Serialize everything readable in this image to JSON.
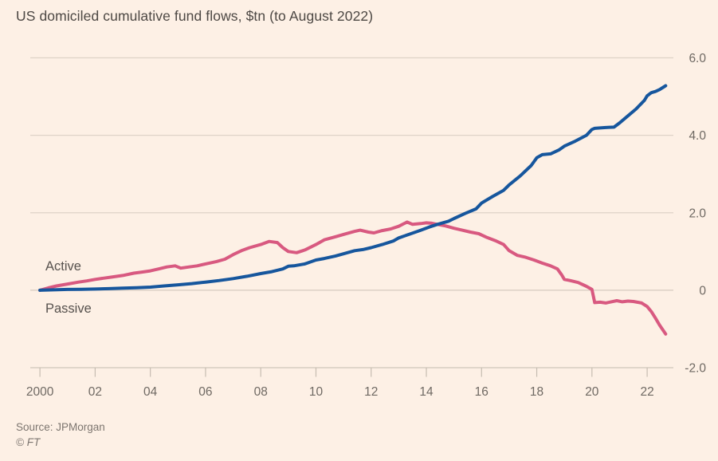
{
  "chart": {
    "title": "US domiciled cumulative fund flows, $tn (to August 2022)",
    "source": "Source: JPMorgan",
    "copyright": "© FT",
    "series_labels": {
      "active": "Active",
      "passive": "Passive"
    }
  },
  "chart_data": {
    "type": "line",
    "title": "US domiciled cumulative fund flows, $tn (to August 2022)",
    "xlabel": "",
    "ylabel": "$tn",
    "grid": "horizontal",
    "legend_position": "direct-labels-on-chart",
    "xlim": [
      1999.65,
      2022.95
    ],
    "ylim": [
      -2,
      6
    ],
    "x_ticks": [
      {
        "year": 2000,
        "label": "2000"
      },
      {
        "year": 2002,
        "label": "02"
      },
      {
        "year": 2004,
        "label": "04"
      },
      {
        "year": 2006,
        "label": "06"
      },
      {
        "year": 2008,
        "label": "08"
      },
      {
        "year": 2010,
        "label": "10"
      },
      {
        "year": 2012,
        "label": "12"
      },
      {
        "year": 2014,
        "label": "14"
      },
      {
        "year": 2016,
        "label": "16"
      },
      {
        "year": 2018,
        "label": "18"
      },
      {
        "year": 2020,
        "label": "20"
      },
      {
        "year": 2022,
        "label": "22"
      }
    ],
    "y_ticks": [
      {
        "value": 6,
        "label": "6.0"
      },
      {
        "value": 4,
        "label": "4.0"
      },
      {
        "value": 2,
        "label": "2.0"
      },
      {
        "value": 0,
        "label": "0"
      },
      {
        "value": -2,
        "label": "-2.0"
      }
    ],
    "colors": {
      "passive_line": "#16569d",
      "active_line": "#d85980",
      "background": "#fdf0e5",
      "grid": "#ded3c7",
      "zero_line": "#d5cabe",
      "axis": "#cfc5ba",
      "tick": "#c6bcb1",
      "text_primary": "#4d4844",
      "text_secondary": "#6f6963",
      "text_muted": "#7d7670"
    },
    "series": [
      {
        "name": "Active",
        "color_key": "active_line",
        "points": [
          [
            2000,
            0.0
          ],
          [
            2000.3,
            0.06
          ],
          [
            2000.6,
            0.11
          ],
          [
            2001,
            0.16
          ],
          [
            2001.4,
            0.21
          ],
          [
            2001.7,
            0.24
          ],
          [
            2002,
            0.28
          ],
          [
            2002.3,
            0.31
          ],
          [
            2002.6,
            0.34
          ],
          [
            2003,
            0.38
          ],
          [
            2003.4,
            0.44
          ],
          [
            2003.7,
            0.47
          ],
          [
            2004,
            0.5
          ],
          [
            2004.3,
            0.55
          ],
          [
            2004.6,
            0.6
          ],
          [
            2004.9,
            0.63
          ],
          [
            2005.1,
            0.57
          ],
          [
            2005.4,
            0.6
          ],
          [
            2005.7,
            0.63
          ],
          [
            2006,
            0.68
          ],
          [
            2006.4,
            0.74
          ],
          [
            2006.7,
            0.8
          ],
          [
            2007,
            0.92
          ],
          [
            2007.3,
            1.02
          ],
          [
            2007.6,
            1.1
          ],
          [
            2008,
            1.18
          ],
          [
            2008.3,
            1.26
          ],
          [
            2008.6,
            1.23
          ],
          [
            2008.8,
            1.1
          ],
          [
            2009,
            1.0
          ],
          [
            2009.3,
            0.97
          ],
          [
            2009.6,
            1.04
          ],
          [
            2010,
            1.18
          ],
          [
            2010.3,
            1.3
          ],
          [
            2010.7,
            1.38
          ],
          [
            2011,
            1.44
          ],
          [
            2011.4,
            1.52
          ],
          [
            2011.6,
            1.55
          ],
          [
            2011.9,
            1.5
          ],
          [
            2012.1,
            1.48
          ],
          [
            2012.4,
            1.54
          ],
          [
            2012.7,
            1.58
          ],
          [
            2013,
            1.65
          ],
          [
            2013.3,
            1.76
          ],
          [
            2013.5,
            1.7
          ],
          [
            2013.8,
            1.72
          ],
          [
            2014,
            1.74
          ],
          [
            2014.2,
            1.73
          ],
          [
            2014.4,
            1.7
          ],
          [
            2014.7,
            1.66
          ],
          [
            2015,
            1.6
          ],
          [
            2015.3,
            1.55
          ],
          [
            2015.6,
            1.5
          ],
          [
            2015.9,
            1.46
          ],
          [
            2016.2,
            1.36
          ],
          [
            2016.5,
            1.28
          ],
          [
            2016.8,
            1.18
          ],
          [
            2017,
            1.02
          ],
          [
            2017.3,
            0.9
          ],
          [
            2017.6,
            0.85
          ],
          [
            2017.9,
            0.78
          ],
          [
            2018.2,
            0.7
          ],
          [
            2018.5,
            0.63
          ],
          [
            2018.75,
            0.55
          ],
          [
            2018.9,
            0.4
          ],
          [
            2019,
            0.28
          ],
          [
            2019.2,
            0.25
          ],
          [
            2019.5,
            0.2
          ],
          [
            2019.8,
            0.1
          ],
          [
            2020,
            0.02
          ],
          [
            2020.1,
            -0.32
          ],
          [
            2020.3,
            -0.31
          ],
          [
            2020.5,
            -0.33
          ],
          [
            2020.7,
            -0.3
          ],
          [
            2020.9,
            -0.27
          ],
          [
            2021.1,
            -0.3
          ],
          [
            2021.3,
            -0.28
          ],
          [
            2021.5,
            -0.29
          ],
          [
            2021.8,
            -0.33
          ],
          [
            2022,
            -0.42
          ],
          [
            2022.15,
            -0.55
          ],
          [
            2022.3,
            -0.72
          ],
          [
            2022.45,
            -0.9
          ],
          [
            2022.67,
            -1.13
          ]
        ]
      },
      {
        "name": "Passive",
        "color_key": "passive_line",
        "points": [
          [
            2000,
            0.0
          ],
          [
            2000.5,
            0.01
          ],
          [
            2001,
            0.02
          ],
          [
            2001.5,
            0.025
          ],
          [
            2002,
            0.03
          ],
          [
            2002.5,
            0.04
          ],
          [
            2003,
            0.055
          ],
          [
            2003.5,
            0.065
          ],
          [
            2004,
            0.08
          ],
          [
            2004.5,
            0.11
          ],
          [
            2005,
            0.14
          ],
          [
            2005.5,
            0.17
          ],
          [
            2006,
            0.21
          ],
          [
            2006.5,
            0.25
          ],
          [
            2007,
            0.3
          ],
          [
            2007.5,
            0.36
          ],
          [
            2008,
            0.43
          ],
          [
            2008.4,
            0.48
          ],
          [
            2008.8,
            0.55
          ],
          [
            2009,
            0.62
          ],
          [
            2009.2,
            0.63
          ],
          [
            2009.6,
            0.68
          ],
          [
            2010,
            0.78
          ],
          [
            2010.3,
            0.82
          ],
          [
            2010.7,
            0.88
          ],
          [
            2011,
            0.94
          ],
          [
            2011.4,
            1.02
          ],
          [
            2011.7,
            1.05
          ],
          [
            2012,
            1.1
          ],
          [
            2012.4,
            1.18
          ],
          [
            2012.8,
            1.27
          ],
          [
            2013,
            1.35
          ],
          [
            2013.4,
            1.45
          ],
          [
            2013.8,
            1.55
          ],
          [
            2014.1,
            1.63
          ],
          [
            2014.4,
            1.7
          ],
          [
            2014.8,
            1.78
          ],
          [
            2015,
            1.85
          ],
          [
            2015.4,
            1.98
          ],
          [
            2015.8,
            2.1
          ],
          [
            2016,
            2.25
          ],
          [
            2016.4,
            2.42
          ],
          [
            2016.8,
            2.58
          ],
          [
            2017,
            2.72
          ],
          [
            2017.4,
            2.95
          ],
          [
            2017.8,
            3.22
          ],
          [
            2018,
            3.42
          ],
          [
            2018.2,
            3.5
          ],
          [
            2018.5,
            3.52
          ],
          [
            2018.8,
            3.62
          ],
          [
            2019,
            3.72
          ],
          [
            2019.4,
            3.85
          ],
          [
            2019.8,
            4.0
          ],
          [
            2020,
            4.15
          ],
          [
            2020.1,
            4.18
          ],
          [
            2020.5,
            4.2
          ],
          [
            2020.8,
            4.21
          ],
          [
            2021,
            4.32
          ],
          [
            2021.3,
            4.5
          ],
          [
            2021.6,
            4.68
          ],
          [
            2021.9,
            4.9
          ],
          [
            2022,
            5.02
          ],
          [
            2022.15,
            5.1
          ],
          [
            2022.3,
            5.13
          ],
          [
            2022.45,
            5.18
          ],
          [
            2022.67,
            5.28
          ]
        ]
      }
    ]
  }
}
